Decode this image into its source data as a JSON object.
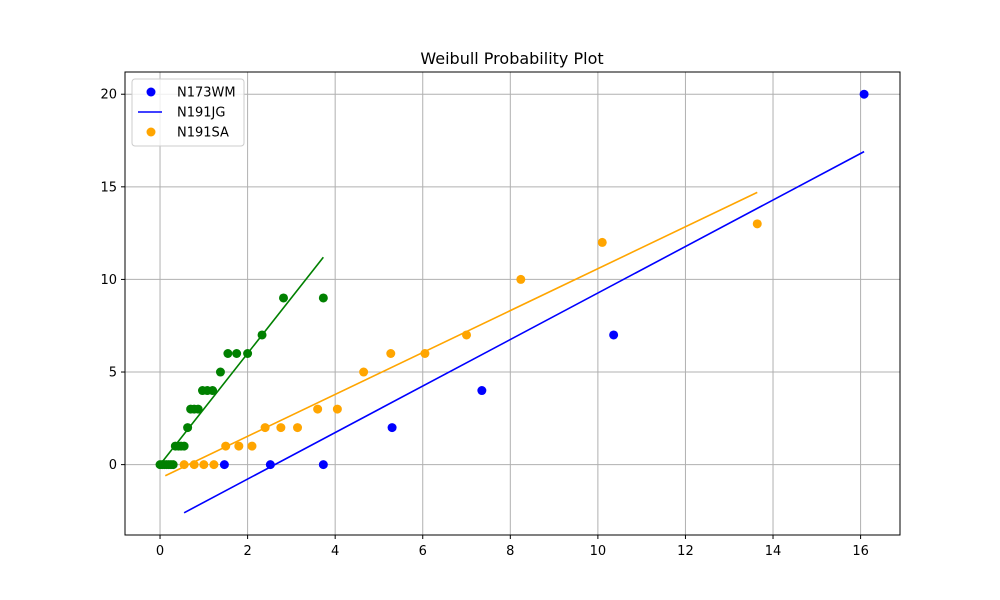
{
  "chart_data": {
    "type": "scatter",
    "title": "Weibull Probability Plot",
    "xlabel": "",
    "ylabel": "",
    "xlim": [
      -0.8,
      16.9
    ],
    "ylim": [
      -3.8,
      21.2
    ],
    "xticks": [
      0,
      2,
      4,
      6,
      8,
      10,
      12,
      14,
      16
    ],
    "yticks": [
      0,
      5,
      10,
      15,
      20
    ],
    "grid": true,
    "legend_position": "top-left",
    "legend": [
      {
        "label": "N173WM",
        "kind": "marker",
        "color": "#0000ff"
      },
      {
        "label": "N191JG",
        "kind": "line",
        "color": "#0000ff"
      },
      {
        "label": "N191SA",
        "kind": "marker",
        "color": "#ffa500"
      }
    ],
    "series": [
      {
        "name": "N173WM",
        "color": "#0000ff",
        "points": [
          [
            1.47,
            0
          ],
          [
            2.52,
            0
          ],
          [
            3.73,
            0
          ],
          [
            5.3,
            2
          ],
          [
            7.35,
            4
          ],
          [
            10.36,
            7
          ],
          [
            16.08,
            20
          ]
        ],
        "fit": [
          [
            0.55,
            -2.6
          ],
          [
            16.08,
            16.9
          ]
        ]
      },
      {
        "color": "#ffa500",
        "points": [
          [
            0.55,
            0
          ],
          [
            0.78,
            0
          ],
          [
            1.0,
            0
          ],
          [
            1.23,
            0
          ],
          [
            1.5,
            1
          ],
          [
            1.8,
            1
          ],
          [
            2.1,
            1
          ],
          [
            2.4,
            2
          ],
          [
            2.76,
            2
          ],
          [
            3.14,
            2
          ],
          [
            3.6,
            3
          ],
          [
            4.05,
            3
          ],
          [
            4.65,
            5
          ],
          [
            5.27,
            6
          ],
          [
            6.05,
            6
          ],
          [
            7.0,
            7
          ],
          [
            8.24,
            10
          ],
          [
            10.1,
            12
          ],
          [
            13.64,
            13
          ]
        ],
        "fit": [
          [
            0.12,
            -0.6
          ],
          [
            13.64,
            14.7
          ]
        ]
      },
      {
        "color": "#008000",
        "points": [
          [
            0.0,
            0
          ],
          [
            0.05,
            0
          ],
          [
            0.1,
            0
          ],
          [
            0.15,
            0
          ],
          [
            0.2,
            0
          ],
          [
            0.25,
            0
          ],
          [
            0.3,
            0
          ],
          [
            0.35,
            1
          ],
          [
            0.42,
            1
          ],
          [
            0.48,
            1
          ],
          [
            0.55,
            1
          ],
          [
            0.63,
            2
          ],
          [
            0.7,
            3
          ],
          [
            0.78,
            3
          ],
          [
            0.87,
            3
          ],
          [
            0.97,
            4
          ],
          [
            1.08,
            4
          ],
          [
            1.2,
            4
          ],
          [
            1.38,
            5
          ],
          [
            1.55,
            6
          ],
          [
            1.75,
            6
          ],
          [
            2.0,
            6
          ],
          [
            2.33,
            7
          ],
          [
            2.82,
            9
          ],
          [
            3.73,
            9
          ]
        ],
        "fit": [
          [
            0.0,
            0.0
          ],
          [
            3.73,
            11.2
          ]
        ]
      }
    ]
  }
}
